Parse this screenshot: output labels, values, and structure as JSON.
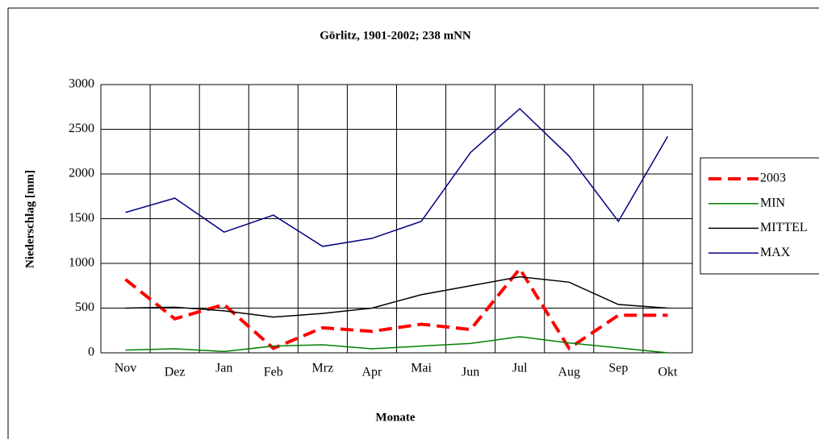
{
  "chart_data": {
    "type": "line",
    "title": "Görlitz, 1901-2002; 238 mNN",
    "x_label": "Monate",
    "y_label": "Niederschlag [mm]",
    "categories": [
      "Nov",
      "Dez",
      "Jan",
      "Feb",
      "Mrz",
      "Apr",
      "Mai",
      "Jun",
      "Jul",
      "Aug",
      "Sep",
      "Okt"
    ],
    "series": [
      {
        "name": "2003",
        "color": "#ff0000",
        "dashed": true,
        "values": [
          820,
          380,
          540,
          50,
          280,
          240,
          320,
          260,
          940,
          50,
          420,
          420
        ]
      },
      {
        "name": "MIN",
        "color": "#008000",
        "values": [
          30,
          45,
          15,
          75,
          90,
          45,
          75,
          105,
          180,
          110,
          55,
          0
        ]
      },
      {
        "name": "MITTEL",
        "color": "#000000",
        "values": [
          500,
          510,
          470,
          400,
          440,
          500,
          650,
          750,
          850,
          790,
          540,
          500
        ]
      },
      {
        "name": "MAX",
        "color": "#000080",
        "values": [
          1570,
          1730,
          1350,
          1540,
          1190,
          1280,
          1470,
          2240,
          2730,
          2200,
          1470,
          2420
        ]
      }
    ],
    "ylim": [
      0,
      3000
    ],
    "yticks": [
      0,
      500,
      1000,
      1500,
      2000,
      2500,
      3000
    ],
    "grid": true,
    "legend": "right"
  }
}
